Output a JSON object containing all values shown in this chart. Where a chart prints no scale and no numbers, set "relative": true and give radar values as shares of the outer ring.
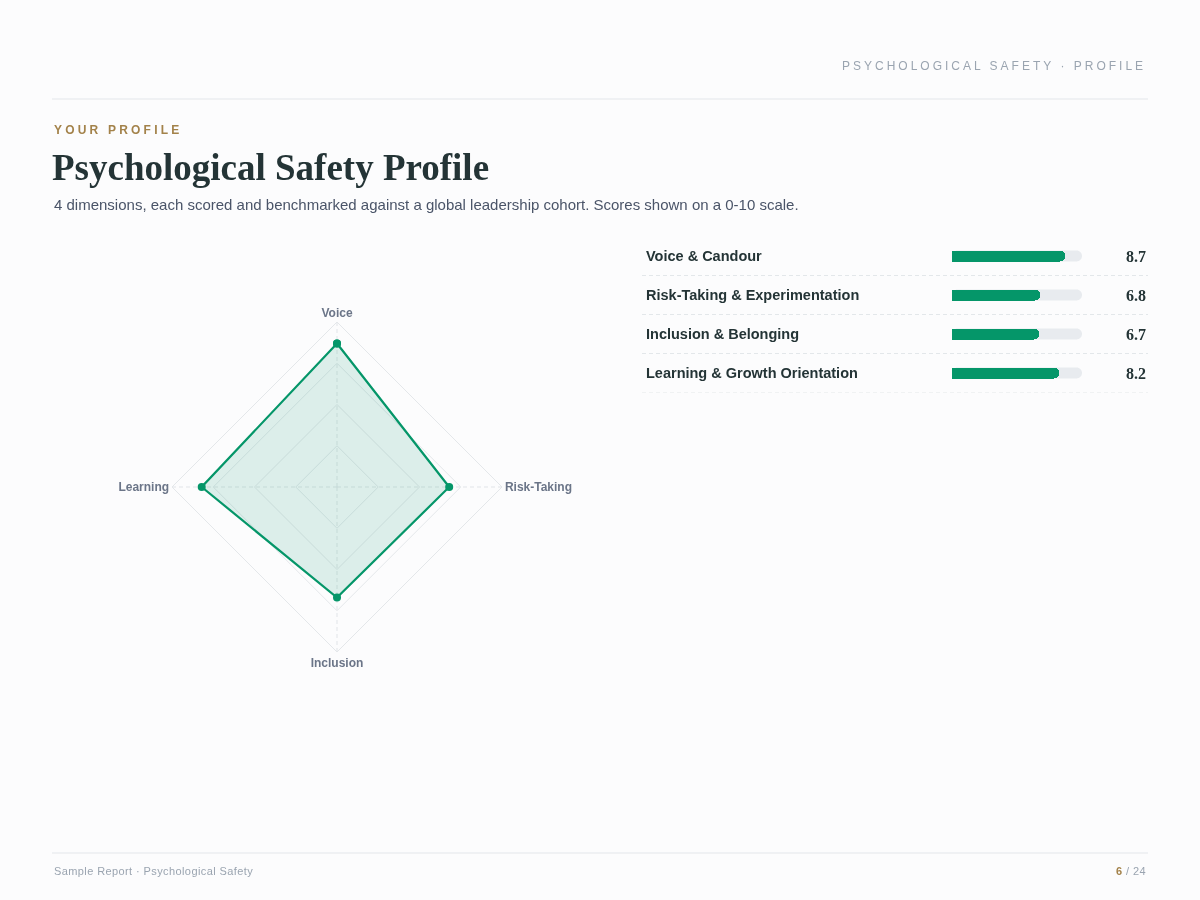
{
  "chart_data": [
    {
      "type": "radar",
      "title": "Psychological Safety Profile",
      "subtitle": "4 dimensions, each scored and benchmarked against a global leadership cohort. Scores shown on a 0-10 scale.",
      "annotations": [
        "YOUR PROFILE",
        "PSYCHOLOGICAL SAFETY · PROFILE",
        "Sample Report · Psychological Safety",
        "6 / 24"
      ],
      "categories": [
        "Voice",
        "Risk-Taking",
        "Inclusion",
        "Learning"
      ],
      "values": [
        0.87,
        0.68,
        0.67,
        0.82
      ],
      "color": "#059669",
      "relative": true,
      "grid": true,
      "marker": "circle",
      "line_style": "solid"
    },
    {
      "type": "bar",
      "orientation": "horizontal",
      "categories": [
        "Voice & Candour",
        "Risk-Taking & Experimentation",
        "Inclusion & Belonging",
        "Learning & Growth Orientation"
      ],
      "values": [
        8.7,
        6.8,
        6.7,
        8.2
      ],
      "color": "#059669",
      "xlim": [
        0,
        10
      ],
      "data_labels": true,
      "grid": "y",
      "tick_labels": "y"
    }
  ]
}
